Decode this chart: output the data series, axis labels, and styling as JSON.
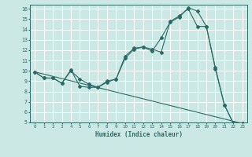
{
  "xlabel": "Humidex (Indice chaleur)",
  "bg_color": "#cce8e4",
  "grid_color": "#ffffff",
  "line_color": "#2a6b65",
  "xlim": [
    -0.5,
    23.5
  ],
  "ylim": [
    5,
    16.4
  ],
  "line1_x": [
    0,
    1,
    2,
    3,
    4,
    5,
    6,
    7,
    8,
    9,
    10,
    11,
    12,
    13,
    14,
    15,
    16,
    17,
    18,
    19,
    20,
    21,
    22,
    23
  ],
  "line1_y": [
    9.9,
    9.3,
    9.3,
    8.8,
    10.1,
    8.5,
    8.4,
    8.4,
    9.0,
    9.2,
    11.4,
    12.2,
    12.3,
    11.9,
    13.2,
    14.7,
    15.2,
    16.1,
    15.8,
    14.3,
    10.3,
    6.7,
    4.9,
    4.9
  ],
  "line2_x": [
    0,
    1,
    2,
    3,
    4,
    5,
    6,
    7,
    8,
    9,
    10,
    11,
    12,
    13,
    14,
    15,
    16,
    17,
    18,
    19,
    20,
    21,
    22,
    23
  ],
  "line2_y": [
    9.9,
    9.3,
    9.3,
    8.8,
    10.0,
    9.2,
    8.7,
    8.4,
    8.9,
    9.2,
    11.2,
    12.1,
    12.3,
    12.1,
    11.8,
    14.8,
    15.3,
    16.0,
    14.3,
    14.3,
    10.2,
    6.7,
    4.9,
    4.9
  ],
  "line3_x": [
    0,
    23
  ],
  "line3_y": [
    9.9,
    4.9
  ],
  "yticks": [
    5,
    6,
    7,
    8,
    9,
    10,
    11,
    12,
    13,
    14,
    15,
    16
  ],
  "xticks": [
    0,
    1,
    2,
    3,
    4,
    5,
    6,
    7,
    8,
    9,
    10,
    11,
    12,
    13,
    14,
    15,
    16,
    17,
    18,
    19,
    20,
    21,
    22,
    23
  ]
}
